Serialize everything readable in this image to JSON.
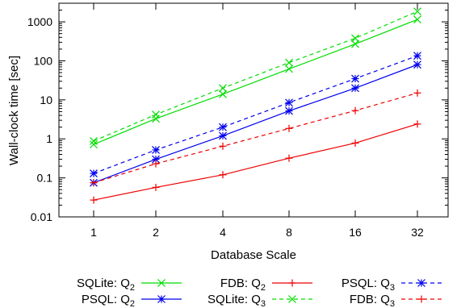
{
  "chart_data": {
    "type": "line",
    "title": "",
    "xlabel": "Database Scale",
    "ylabel": "Wall-clock time [sec]",
    "yscale": "log",
    "ylim": [
      0.01,
      3000
    ],
    "x": [
      1,
      2,
      4,
      8,
      16,
      32
    ],
    "x_tick_labels": [
      "1",
      "2",
      "4",
      "8",
      "16",
      "32"
    ],
    "y_tick_labels": [
      "0.01",
      "0.1",
      "1",
      "10",
      "100",
      "1000"
    ],
    "y_ticks": [
      0.01,
      0.1,
      1,
      10,
      100,
      1000
    ],
    "grid": false,
    "legend_placement": "bottom",
    "series": [
      {
        "name_base": "SQLite: Q",
        "name_sub": "2",
        "color": "#00dd00",
        "dash": "solid",
        "marker": "x",
        "values": [
          0.72,
          3.3,
          14,
          62,
          270,
          1150
        ]
      },
      {
        "name_base": "PSQL: Q",
        "name_sub": "2",
        "color": "#0000ee",
        "dash": "solid",
        "marker": "asterisk",
        "values": [
          0.075,
          0.3,
          1.2,
          5.2,
          20,
          80
        ]
      },
      {
        "name_base": "FDB: Q",
        "name_sub": "2",
        "color": "#ee0000",
        "dash": "solid",
        "marker": "plus",
        "values": [
          0.027,
          0.057,
          0.12,
          0.32,
          0.78,
          2.4
        ]
      },
      {
        "name_base": "SQLite: Q",
        "name_sub": "3",
        "color": "#00dd00",
        "dash": "dashed",
        "marker": "x",
        "values": [
          0.88,
          4.2,
          20,
          90,
          380,
          1850
        ]
      },
      {
        "name_base": "PSQL: Q",
        "name_sub": "3",
        "color": "#0000ee",
        "dash": "dashed",
        "marker": "asterisk",
        "values": [
          0.13,
          0.52,
          2.0,
          8.5,
          35,
          135
        ]
      },
      {
        "name_base": "FDB: Q",
        "name_sub": "3",
        "color": "#ee0000",
        "dash": "dashed",
        "marker": "plus",
        "values": [
          0.075,
          0.23,
          0.65,
          1.85,
          5.3,
          15
        ]
      }
    ]
  }
}
